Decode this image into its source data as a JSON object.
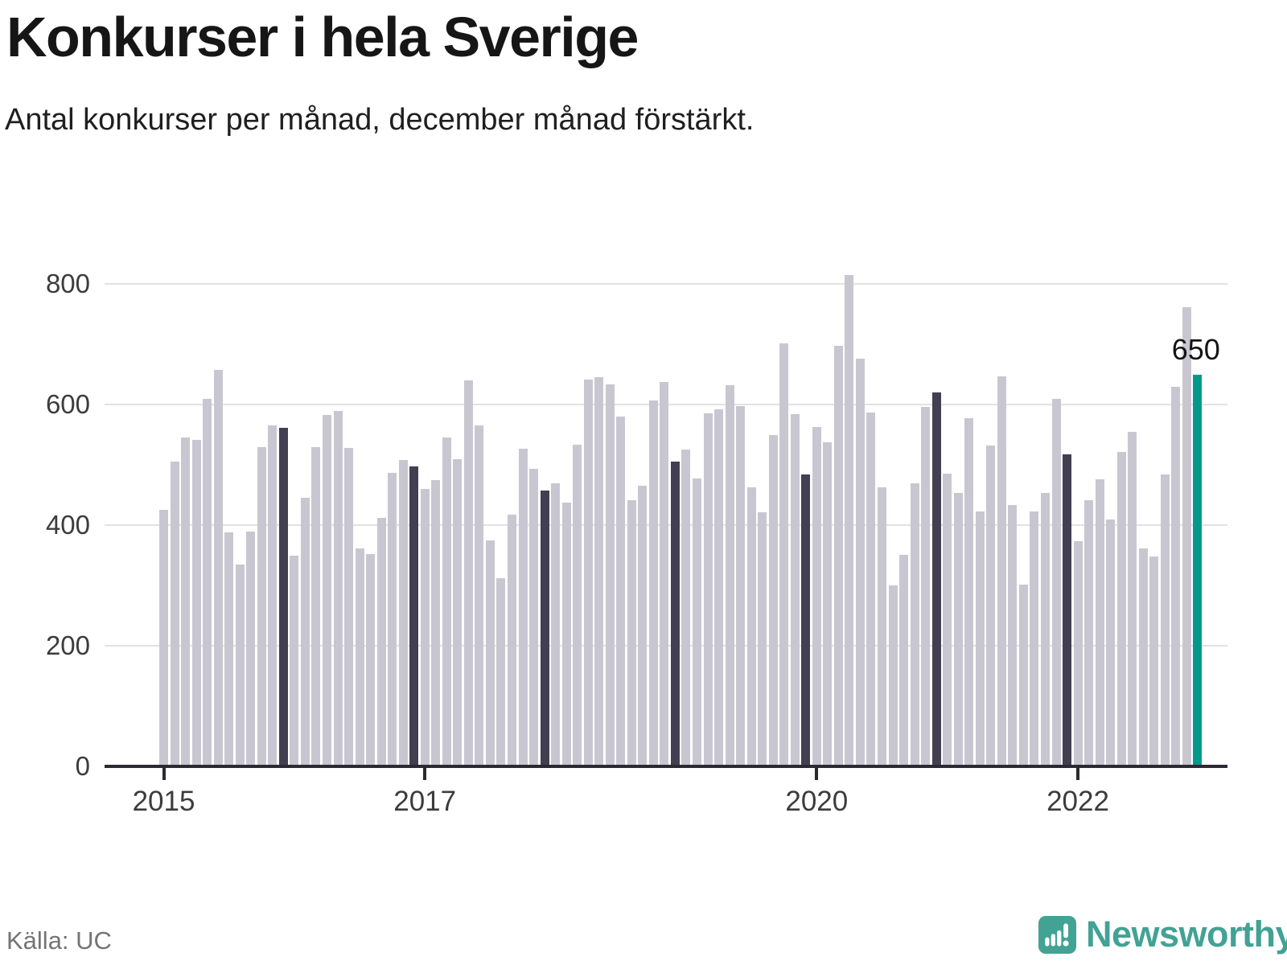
{
  "header": {
    "title": "Konkurser i hela Sverige",
    "subtitle": "Antal konkurser per månad, december månad förstärkt."
  },
  "footer": {
    "source": "Källa: UC",
    "brand": "Newsworthy",
    "logo_icon": "bar-chart-exclamation-icon"
  },
  "colors": {
    "bar_light": "#c8c7d1",
    "bar_december": "#423f52",
    "bar_latest": "#009a8c",
    "brand_teal": "#42a294",
    "grid": "#e2e2e2",
    "axis": "#2b2a33",
    "text": "#161616",
    "muted_text": "#747474"
  },
  "chart_data": {
    "type": "bar",
    "title": "Konkurser i hela Sverige",
    "subtitle": "Antal konkurser per månad, december månad förstärkt.",
    "ylabel": "Antal konkurser per månad",
    "xlabel": "",
    "grid": "horizontal",
    "y_ticks": [
      0,
      200,
      400,
      600,
      800
    ],
    "ylim": [
      0,
      850
    ],
    "x_tick_labels": [
      {
        "label": "2015",
        "month_index": 0
      },
      {
        "label": "2017",
        "month_index": 24
      },
      {
        "label": "2020",
        "month_index": 60
      },
      {
        "label": "2022",
        "month_index": 84
      }
    ],
    "december_emphasized": true,
    "annotation": {
      "label": "650",
      "month": "2022-12"
    },
    "series": [
      {
        "year": 2015,
        "values": [
          425,
          505,
          545,
          542,
          610,
          657,
          388,
          335,
          390,
          530,
          566,
          562
        ]
      },
      {
        "year": 2016,
        "values": [
          350,
          445,
          530,
          583,
          590,
          528,
          362,
          352,
          412,
          487,
          508,
          498
        ]
      },
      {
        "year": 2017,
        "values": [
          460,
          475,
          545,
          510,
          640,
          565,
          375,
          312,
          418,
          527,
          494,
          457
        ]
      },
      {
        "year": 2018,
        "values": [
          470,
          438,
          534,
          642,
          646,
          633,
          580,
          441,
          465,
          607,
          638,
          505
        ]
      },
      {
        "year": 2019,
        "values": [
          525,
          478,
          585,
          592,
          632,
          597,
          463,
          421,
          549,
          701,
          584,
          484
        ]
      },
      {
        "year": 2020,
        "values": [
          563,
          538,
          697,
          815,
          676,
          587,
          463,
          300,
          351,
          469,
          596,
          620
        ]
      },
      {
        "year": 2021,
        "values": [
          486,
          453,
          578,
          423,
          532,
          647,
          433,
          302,
          423,
          453,
          609,
          518
        ]
      },
      {
        "year": 2022,
        "values": [
          373,
          441,
          476,
          410,
          522,
          555,
          361,
          348,
          484,
          630,
          761,
          650
        ]
      }
    ]
  }
}
